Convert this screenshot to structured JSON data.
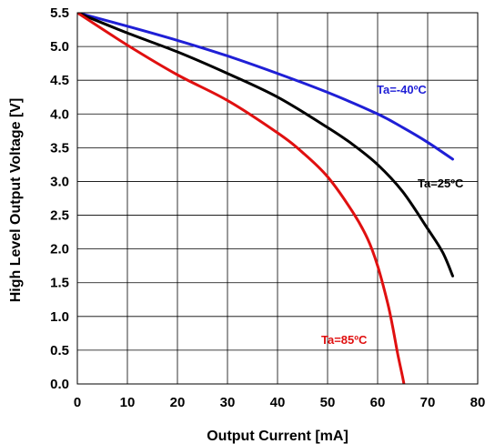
{
  "chart_data": {
    "type": "line",
    "xlabel": "Output Current [mA]",
    "ylabel": "High Level Output Voltage [V]",
    "xlim": [
      0,
      80
    ],
    "ylim": [
      0,
      5.5
    ],
    "xticks": [
      "0",
      "10",
      "20",
      "30",
      "40",
      "50",
      "60",
      "70",
      "80"
    ],
    "yticks": [
      "0.0",
      "0.5",
      "1.0",
      "1.5",
      "2.0",
      "2.5",
      "3.0",
      "3.5",
      "4.0",
      "4.5",
      "5.0",
      "5.5"
    ],
    "grid": true,
    "series": [
      {
        "name": "Ta=-40ºC",
        "color": "#1f1fd6",
        "x": [
          0,
          10,
          20,
          30,
          40,
          50,
          60,
          65,
          70,
          75
        ],
        "y": [
          5.5,
          5.3,
          5.09,
          4.86,
          4.6,
          4.32,
          4.0,
          3.8,
          3.58,
          3.33
        ]
      },
      {
        "name": "Ta=25ºC",
        "color": "#000000",
        "x": [
          0,
          10,
          20,
          30,
          40,
          50,
          55,
          60,
          65,
          70,
          73,
          75
        ],
        "y": [
          5.5,
          5.2,
          4.92,
          4.6,
          4.25,
          3.8,
          3.55,
          3.25,
          2.85,
          2.3,
          1.95,
          1.6
        ]
      },
      {
        "name": "Ta=85ºC",
        "color": "#e01010",
        "x": [
          0,
          10,
          20,
          30,
          40,
          45,
          50,
          55,
          58,
          60,
          62,
          63,
          64,
          65,
          65.5
        ],
        "y": [
          5.5,
          5.02,
          4.58,
          4.2,
          3.72,
          3.43,
          3.07,
          2.55,
          2.15,
          1.75,
          1.2,
          0.85,
          0.45,
          0.1,
          -0.1
        ]
      }
    ]
  }
}
